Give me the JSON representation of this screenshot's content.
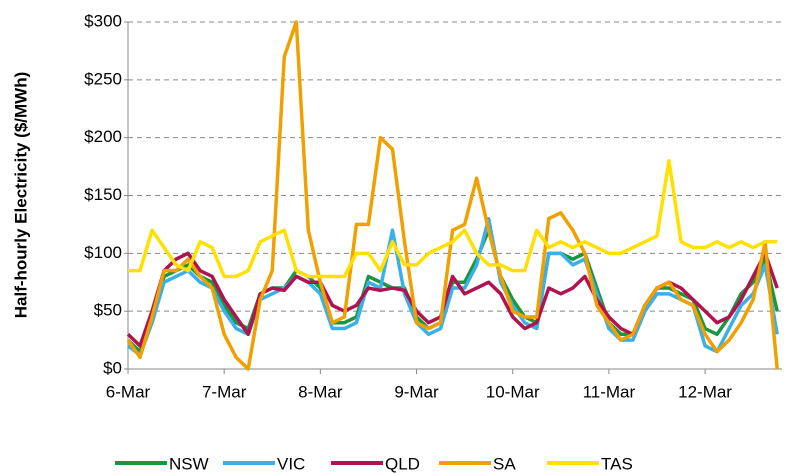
{
  "chart_data": {
    "type": "line",
    "ylabel": "Half-hourly Electricity ($/MWh)",
    "x": [
      0,
      0.125,
      0.25,
      0.375,
      0.5,
      0.625,
      0.75,
      0.875,
      1,
      1.125,
      1.25,
      1.375,
      1.5,
      1.625,
      1.75,
      1.875,
      2,
      2.125,
      2.25,
      2.375,
      2.5,
      2.625,
      2.75,
      2.875,
      3,
      3.125,
      3.25,
      3.375,
      3.5,
      3.625,
      3.75,
      3.875,
      4,
      4.125,
      4.25,
      4.375,
      4.5,
      4.625,
      4.75,
      4.875,
      5,
      5.125,
      5.25,
      5.375,
      5.5,
      5.625,
      5.75,
      5.875,
      6,
      6.125,
      6.25,
      6.375,
      6.5,
      6.625,
      6.75
    ],
    "xlim": [
      0,
      6.8
    ],
    "xticks": [
      {
        "value": 0,
        "label": "6-Mar"
      },
      {
        "value": 1,
        "label": "7-Mar"
      },
      {
        "value": 2,
        "label": "8-Mar"
      },
      {
        "value": 3,
        "label": "9-Mar"
      },
      {
        "value": 4,
        "label": "10-Mar"
      },
      {
        "value": 5,
        "label": "11-Mar"
      },
      {
        "value": 6,
        "label": "12-Mar"
      }
    ],
    "ylim": [
      0,
      300
    ],
    "yticks": [
      {
        "value": 0,
        "label": "$0"
      },
      {
        "value": 50,
        "label": "$50"
      },
      {
        "value": 100,
        "label": "$100"
      },
      {
        "value": 150,
        "label": "$150"
      },
      {
        "value": 200,
        "label": "$200"
      },
      {
        "value": 250,
        "label": "$250"
      },
      {
        "value": 300,
        "label": "$300"
      }
    ],
    "grid": true,
    "legend": "bottom",
    "series": [
      {
        "name": "NSW",
        "color": "#1a9641",
        "values": [
          25,
          15,
          45,
          80,
          85,
          90,
          80,
          75,
          55,
          40,
          35,
          65,
          70,
          70,
          85,
          80,
          70,
          40,
          40,
          45,
          80,
          75,
          70,
          70,
          45,
          35,
          40,
          75,
          75,
          95,
          120,
          80,
          60,
          45,
          40,
          100,
          100,
          95,
          100,
          70,
          40,
          30,
          30,
          55,
          70,
          70,
          65,
          60,
          35,
          30,
          45,
          65,
          75,
          95,
          50
        ]
      },
      {
        "name": "VIC",
        "color": "#3bb0e6",
        "values": [
          20,
          12,
          40,
          75,
          80,
          85,
          75,
          70,
          50,
          35,
          30,
          60,
          65,
          70,
          80,
          75,
          65,
          35,
          35,
          40,
          75,
          70,
          120,
          65,
          40,
          30,
          35,
          70,
          70,
          90,
          130,
          75,
          55,
          40,
          35,
          100,
          100,
          90,
          95,
          65,
          35,
          25,
          25,
          50,
          65,
          65,
          60,
          55,
          20,
          15,
          35,
          55,
          65,
          90,
          30
        ]
      },
      {
        "name": "QLD",
        "color": "#b0134f",
        "values": [
          30,
          20,
          50,
          85,
          95,
          100,
          85,
          80,
          60,
          45,
          30,
          65,
          70,
          68,
          80,
          75,
          75,
          55,
          50,
          55,
          70,
          68,
          70,
          68,
          50,
          40,
          45,
          80,
          65,
          70,
          75,
          65,
          45,
          35,
          40,
          70,
          65,
          70,
          80,
          60,
          45,
          35,
          30,
          55,
          70,
          75,
          70,
          60,
          50,
          40,
          45,
          60,
          80,
          100,
          70
        ]
      },
      {
        "name": "SA",
        "color": "#f0a000",
        "values": [
          25,
          10,
          45,
          85,
          85,
          95,
          80,
          70,
          30,
          10,
          0,
          60,
          85,
          270,
          300,
          120,
          75,
          40,
          45,
          125,
          125,
          200,
          190,
          110,
          40,
          35,
          40,
          120,
          125,
          165,
          120,
          80,
          50,
          45,
          45,
          130,
          135,
          120,
          100,
          55,
          40,
          25,
          30,
          55,
          70,
          75,
          60,
          55,
          30,
          15,
          25,
          40,
          60,
          110,
          0
        ]
      },
      {
        "name": "TAS",
        "color": "#ffe000",
        "values": [
          85,
          85,
          120,
          105,
          90,
          85,
          110,
          105,
          80,
          80,
          85,
          110,
          115,
          120,
          85,
          80,
          80,
          80,
          80,
          100,
          100,
          85,
          110,
          90,
          90,
          100,
          105,
          110,
          120,
          100,
          90,
          90,
          85,
          85,
          120,
          105,
          110,
          105,
          110,
          105,
          100,
          100,
          105,
          110,
          115,
          180,
          110,
          105,
          105,
          110,
          105,
          110,
          105,
          110,
          110
        ]
      }
    ]
  }
}
